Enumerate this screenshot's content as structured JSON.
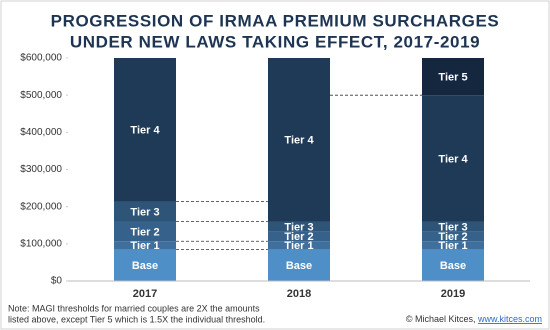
{
  "chart_data": {
    "type": "stacked_bar",
    "title": [
      "PROGRESSION OF IRMAA PREMIUM SURCHARGES",
      "UNDER NEW LAWS TAKING EFFECT, 2017-2019"
    ],
    "categories": [
      "2017",
      "2018",
      "2019"
    ],
    "series": [
      {
        "name": "Base",
        "color": "#4f8fc8",
        "values": [
          85000,
          85000,
          85000
        ]
      },
      {
        "name": "Tier 1",
        "color": "#3f6f9c",
        "values": [
          22000,
          22000,
          22000
        ]
      },
      {
        "name": "Tier 2",
        "color": "#36618b",
        "values": [
          53000,
          26500,
          26500
        ]
      },
      {
        "name": "Tier 3",
        "color": "#2e5478",
        "values": [
          54000,
          26500,
          26500
        ]
      },
      {
        "name": "Tier 4",
        "color": "#1f3a57",
        "values": [
          386000,
          440000,
          340000
        ]
      },
      {
        "name": "Tier 5",
        "color": "#14273f",
        "values": [
          null,
          null,
          100000
        ]
      }
    ],
    "ylim": [
      0,
      600000
    ],
    "yticks": [
      {
        "value": 0,
        "label": "$0"
      },
      {
        "value": 100000,
        "label": "$100,000"
      },
      {
        "value": 200000,
        "label": "$200,000"
      },
      {
        "value": 300000,
        "label": "$300,000"
      },
      {
        "value": 400000,
        "label": "$400,000"
      },
      {
        "value": 500000,
        "label": "$500,000"
      },
      {
        "value": 600000,
        "label": "$600,000"
      }
    ],
    "note": [
      "Note: MAGI thresholds for married couples are 2X the amounts",
      "listed above, except Tier 5 which is 1.5X the individual threshold."
    ],
    "credit": "© Michael Kitces, ",
    "credit_url": "www.kitces.com"
  }
}
